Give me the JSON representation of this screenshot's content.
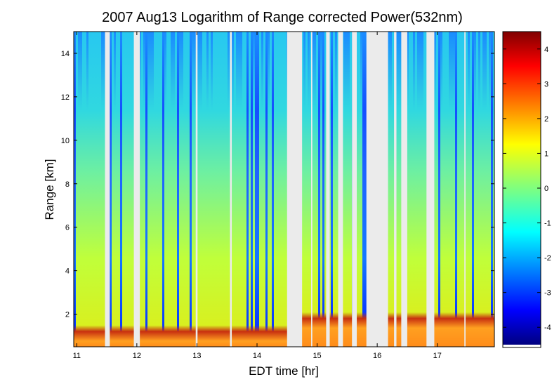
{
  "chart_data": {
    "type": "heatmap",
    "title": "2007 Aug13  Logarithm of Range corrected Power(532nm)",
    "xlabel": "EDT time [hr]",
    "ylabel": "Range [km]",
    "xlim": [
      10.95,
      17.95
    ],
    "ylim": [
      0.5,
      15
    ],
    "xticks": [
      "11",
      "12",
      "13",
      "14",
      "15",
      "16",
      "17"
    ],
    "yticks": [
      "2",
      "4",
      "6",
      "8",
      "10",
      "12",
      "14"
    ],
    "colorbar": {
      "range": [
        -4.5,
        4.5
      ],
      "ticks": [
        "-4",
        "-3",
        "-2",
        "-1",
        "0",
        "1",
        "2",
        "3",
        "4"
      ],
      "colormap": "jet"
    },
    "no_data_intervals": [
      [
        11.47,
        11.55
      ],
      [
        11.95,
        12.05
      ],
      [
        12.98,
        13.01
      ],
      [
        13.55,
        13.58
      ],
      [
        14.5,
        14.75
      ],
      [
        14.9,
        14.92
      ],
      [
        15.15,
        15.21
      ],
      [
        15.35,
        15.43
      ],
      [
        15.58,
        15.66
      ],
      [
        15.82,
        16.18
      ],
      [
        16.28,
        16.32
      ],
      [
        16.4,
        16.5
      ],
      [
        16.82,
        16.95
      ],
      [
        17.45,
        17.47
      ]
    ],
    "boundary_layer_top_km": 1.2,
    "boundary_layer_top_after_15_km": 1.8,
    "noise_floor_km": 11
  }
}
